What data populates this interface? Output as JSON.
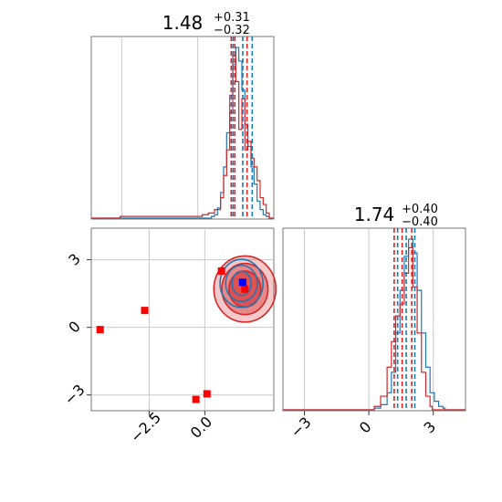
{
  "chart_data": [
    {
      "panel": "top-left histogram",
      "type": "histogram",
      "title": {
        "main": "1.48",
        "sup": "+0.31",
        "sub": "−0.32"
      },
      "xlim": [
        -3.5,
        2.5
      ],
      "grid": true,
      "series": [
        {
          "color": "#1f77b4",
          "bin_centers": [
            0.5,
            0.6,
            0.7,
            0.8,
            0.9,
            1.0,
            1.1,
            1.2,
            1.3,
            1.4,
            1.5,
            1.6,
            1.7,
            1.8,
            1.9,
            2.0,
            2.1,
            2.2,
            2.3,
            2.4
          ],
          "values": [
            0.01,
            0.02,
            0.06,
            0.15,
            0.3,
            0.5,
            0.72,
            0.9,
            1.0,
            0.92,
            0.75,
            0.55,
            0.42,
            0.3,
            0.2,
            0.1,
            0.05,
            0.02,
            0.01,
            0.0
          ],
          "quantiles": [
            1.16,
            1.48,
            1.79
          ]
        },
        {
          "color": "#d62728",
          "bin_centers": [
            -2.5,
            0.0,
            0.2,
            0.4,
            0.6,
            0.8,
            0.9,
            1.0,
            1.1,
            1.2,
            1.3,
            1.4,
            1.5,
            1.6,
            1.7,
            1.8,
            1.9,
            2.0,
            2.1,
            2.2,
            2.3
          ],
          "values": [
            0.01,
            0.01,
            0.02,
            0.03,
            0.05,
            0.12,
            0.25,
            0.4,
            0.62,
            0.95,
            0.8,
            0.52,
            0.7,
            0.4,
            0.45,
            0.35,
            0.3,
            0.22,
            0.12,
            0.08,
            0.03
          ],
          "quantiles": [
            1.1,
            1.22,
            1.62
          ]
        }
      ]
    },
    {
      "panel": "bottom-right histogram",
      "type": "histogram",
      "title": {
        "main": "1.74",
        "sup": "+0.40",
        "sub": "−0.40"
      },
      "xlim": [
        -4,
        4.5
      ],
      "xticks": [
        "−3",
        "0",
        "3"
      ],
      "grid": true,
      "series": [
        {
          "color": "#1f77b4",
          "bin_centers": [
            0.3,
            0.6,
            0.9,
            1.1,
            1.3,
            1.5,
            1.7,
            1.9,
            2.1,
            2.3,
            2.5,
            2.7,
            2.9,
            3.1,
            3.3,
            3.5
          ],
          "values": [
            0.01,
            0.03,
            0.1,
            0.22,
            0.45,
            0.7,
            0.9,
            1.0,
            0.92,
            0.7,
            0.45,
            0.25,
            0.1,
            0.05,
            0.02,
            0.01
          ],
          "quantiles": [
            1.34,
            1.74,
            2.14
          ]
        },
        {
          "color": "#d62728",
          "bin_centers": [
            0.3,
            0.6,
            0.9,
            1.1,
            1.3,
            1.5,
            1.7,
            1.9,
            2.1,
            2.3,
            2.5,
            2.7,
            2.9
          ],
          "values": [
            0.02,
            0.08,
            0.25,
            0.4,
            0.55,
            0.62,
            0.8,
            0.95,
            0.72,
            0.45,
            0.22,
            0.08,
            0.02
          ],
          "quantiles": [
            1.18,
            1.55,
            2.0
          ]
        }
      ]
    },
    {
      "panel": "bottom-left 2D",
      "type": "scatter",
      "xlim": [
        -5.1,
        3.1
      ],
      "ylim": [
        -3.7,
        4.4
      ],
      "xticks": [
        "−2.5",
        "0.0"
      ],
      "yticks": [
        "−3",
        "0",
        "3"
      ],
      "grid": true,
      "red_markers": [
        [
          -4.7,
          -0.1
        ],
        [
          -2.7,
          0.75
        ],
        [
          -0.4,
          -3.2
        ],
        [
          0.1,
          -2.95
        ],
        [
          0.75,
          2.5
        ],
        [
          1.8,
          1.7
        ]
      ],
      "blue_marker": [
        1.7,
        2.0
      ],
      "contours": [
        {
          "color": "#d62728",
          "center": [
            1.8,
            1.7
          ],
          "radii": [
            [
              1.0,
              1.2
            ],
            [
              1.45,
              1.7
            ],
            [
              1.95,
              2.2
            ]
          ]
        },
        {
          "color": "#1f77b4",
          "center": [
            1.65,
            1.95
          ],
          "radii": [
            [
              0.6,
              0.8
            ],
            [
              1.0,
              1.2
            ],
            [
              1.35,
              1.6
            ]
          ]
        }
      ]
    }
  ]
}
